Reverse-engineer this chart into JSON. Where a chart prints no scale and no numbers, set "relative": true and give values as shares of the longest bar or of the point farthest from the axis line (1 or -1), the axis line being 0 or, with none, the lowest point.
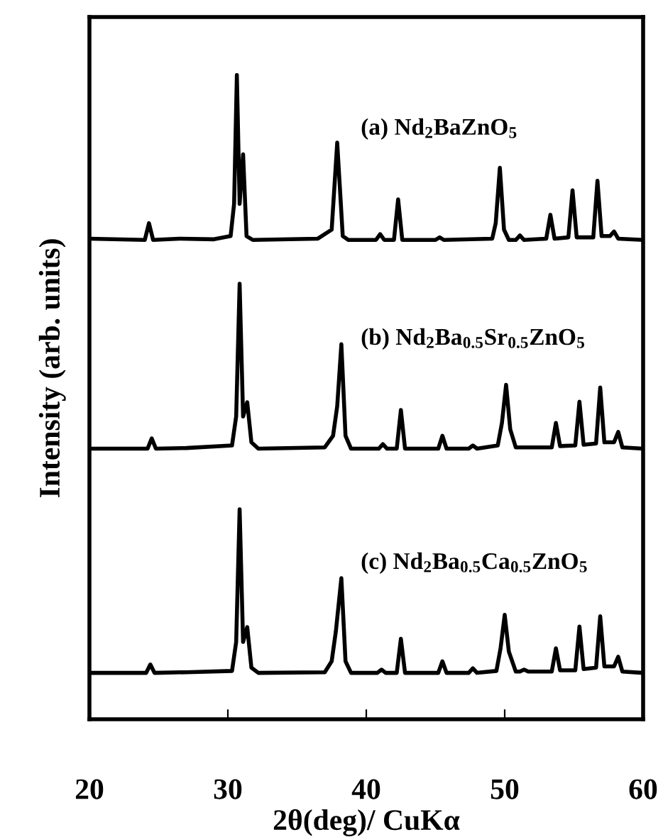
{
  "chart_data": {
    "type": "line",
    "relative": true,
    "xlabel": "2θ(deg)/ CuKα",
    "ylabel": "Intensity (arb. units)",
    "xlim": [
      20,
      60
    ],
    "xticks": [
      20,
      30,
      40,
      50,
      60
    ],
    "grid": false,
    "legend": false,
    "marker": "none",
    "line_style": "solid",
    "series": [
      {
        "name": "(a) Nd$_{2}$BaZnO$_{5}$",
        "color": "#000000",
        "x": [
          20.0,
          24.0,
          24.3,
          24.6,
          26.5,
          29.0,
          30.2,
          30.45,
          30.65,
          30.85,
          31.1,
          31.35,
          31.8,
          36.5,
          37.5,
          37.9,
          38.3,
          38.7,
          40.7,
          41.0,
          41.3,
          42.0,
          42.3,
          42.6,
          45.0,
          45.3,
          45.6,
          49.1,
          49.35,
          49.65,
          49.95,
          50.3,
          50.8,
          51.1,
          51.4,
          53.0,
          53.3,
          53.6,
          54.6,
          54.9,
          55.2,
          56.4,
          56.7,
          57.0,
          57.6,
          57.9,
          58.2,
          60.0
        ],
        "values": [
          0.746,
          0.744,
          0.77,
          0.744,
          0.746,
          0.745,
          0.75,
          0.8,
          1.0,
          0.8,
          0.877,
          0.75,
          0.744,
          0.746,
          0.76,
          0.895,
          0.75,
          0.744,
          0.744,
          0.753,
          0.744,
          0.744,
          0.807,
          0.744,
          0.744,
          0.748,
          0.744,
          0.746,
          0.77,
          0.856,
          0.76,
          0.744,
          0.744,
          0.751,
          0.744,
          0.746,
          0.783,
          0.746,
          0.748,
          0.821,
          0.748,
          0.748,
          0.836,
          0.75,
          0.75,
          0.757,
          0.746,
          0.744
        ]
      },
      {
        "name": "(b) Nd$_{2}$Ba$_{0.5}$Sr$_{0.5}$ZnO$_{5}$",
        "color": "#000000",
        "x": [
          20.0,
          24.2,
          24.5,
          24.8,
          27.0,
          30.3,
          30.6,
          30.85,
          31.1,
          31.4,
          31.7,
          32.2,
          37.0,
          37.6,
          37.9,
          38.2,
          38.5,
          38.9,
          40.9,
          41.2,
          41.5,
          42.2,
          42.5,
          42.8,
          45.2,
          45.5,
          45.8,
          47.4,
          47.7,
          48.0,
          49.5,
          49.8,
          50.1,
          50.4,
          50.8,
          53.4,
          53.7,
          54.0,
          55.1,
          55.4,
          55.7,
          56.6,
          56.9,
          57.2,
          57.9,
          58.2,
          58.5,
          60.0
        ],
        "values": [
          0.42,
          0.42,
          0.436,
          0.42,
          0.421,
          0.425,
          0.47,
          0.676,
          0.47,
          0.492,
          0.43,
          0.42,
          0.422,
          0.44,
          0.486,
          0.582,
          0.44,
          0.42,
          0.42,
          0.427,
          0.42,
          0.42,
          0.48,
          0.42,
          0.42,
          0.44,
          0.42,
          0.42,
          0.425,
          0.42,
          0.425,
          0.46,
          0.519,
          0.45,
          0.422,
          0.422,
          0.46,
          0.424,
          0.425,
          0.493,
          0.426,
          0.428,
          0.515,
          0.43,
          0.43,
          0.446,
          0.422,
          0.42
        ]
      },
      {
        "name": "(c) Nd$_{2}$Ba$_{0.5}$Ca$_{0.5}$ZnO$_{5}$",
        "color": "#000000",
        "x": [
          20.0,
          24.1,
          24.4,
          24.7,
          27.0,
          30.3,
          30.6,
          30.85,
          31.1,
          31.4,
          31.7,
          32.2,
          37.0,
          37.5,
          37.8,
          38.2,
          38.5,
          38.9,
          40.8,
          41.1,
          41.4,
          42.2,
          42.5,
          42.8,
          45.2,
          45.5,
          45.8,
          47.4,
          47.7,
          48.0,
          49.4,
          49.7,
          50.0,
          50.3,
          50.8,
          51.1,
          51.4,
          51.7,
          53.4,
          53.7,
          54.0,
          55.1,
          55.4,
          55.7,
          56.6,
          56.9,
          57.2,
          57.9,
          58.2,
          58.5,
          60.0
        ],
        "values": [
          0.072,
          0.072,
          0.085,
          0.072,
          0.073,
          0.075,
          0.12,
          0.326,
          0.12,
          0.143,
          0.08,
          0.072,
          0.073,
          0.09,
          0.136,
          0.219,
          0.09,
          0.072,
          0.072,
          0.077,
          0.072,
          0.072,
          0.125,
          0.072,
          0.072,
          0.09,
          0.072,
          0.072,
          0.079,
          0.072,
          0.075,
          0.11,
          0.162,
          0.105,
          0.074,
          0.074,
          0.077,
          0.074,
          0.074,
          0.11,
          0.076,
          0.076,
          0.144,
          0.078,
          0.08,
          0.16,
          0.082,
          0.082,
          0.097,
          0.074,
          0.072
        ]
      }
    ]
  }
}
